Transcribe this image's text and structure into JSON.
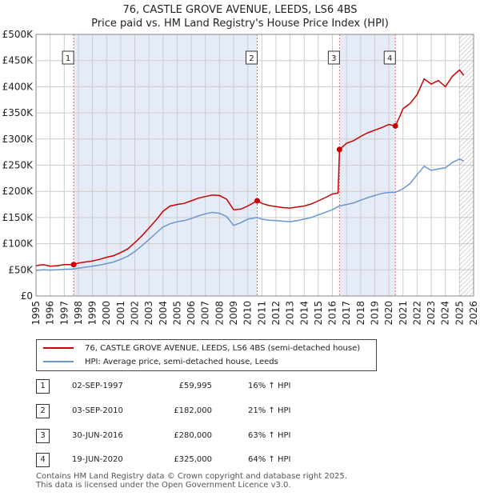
{
  "title_line1": "76, CASTLE GROVE AVENUE, LEEDS, LS6 4BS",
  "title_line2": "Price paid vs. HM Land Registry's House Price Index (HPI)",
  "colors": {
    "property": "#cc0000",
    "hpi": "#6a96d0",
    "shade": "#e6ecf7",
    "dashed": "#e07070"
  },
  "chart_data": {
    "type": "line",
    "xlim": [
      1995,
      2026
    ],
    "ylim": [
      0,
      500000
    ],
    "y_ticks": [
      {
        "v": 0,
        "label": "£0"
      },
      {
        "v": 50000,
        "label": "£50K"
      },
      {
        "v": 100000,
        "label": "£100K"
      },
      {
        "v": 150000,
        "label": "£150K"
      },
      {
        "v": 200000,
        "label": "£200K"
      },
      {
        "v": 250000,
        "label": "£250K"
      },
      {
        "v": 300000,
        "label": "£300K"
      },
      {
        "v": 350000,
        "label": "£350K"
      },
      {
        "v": 400000,
        "label": "£400K"
      },
      {
        "v": 450000,
        "label": "£450K"
      },
      {
        "v": 500000,
        "label": "£500K"
      }
    ],
    "x_ticks": [
      "1995",
      "1996",
      "1997",
      "1998",
      "1999",
      "2000",
      "2001",
      "2002",
      "2003",
      "2004",
      "2005",
      "2006",
      "2007",
      "2008",
      "2009",
      "2010",
      "2011",
      "2012",
      "2013",
      "2014",
      "2015",
      "2016",
      "2017",
      "2018",
      "2019",
      "2020",
      "2021",
      "2022",
      "2023",
      "2024",
      "2025",
      "2026"
    ],
    "shaded_ranges": [
      [
        1997.67,
        2010.67
      ],
      [
        2016.5,
        2020.46
      ]
    ],
    "future_start": 2025.0,
    "series": [
      {
        "name": "76, CASTLE GROVE AVENUE, LEEDS, LS6 4BS (semi-detached house)",
        "points": [
          [
            1995,
            58000
          ],
          [
            1995.5,
            60000
          ],
          [
            1996,
            57000
          ],
          [
            1996.5,
            58000
          ],
          [
            1997,
            60000
          ],
          [
            1997.67,
            59995
          ],
          [
            1998,
            63000
          ],
          [
            1998.5,
            65000
          ],
          [
            1999,
            67000
          ],
          [
            1999.5,
            70000
          ],
          [
            2000,
            74000
          ],
          [
            2000.5,
            77000
          ],
          [
            2001,
            83000
          ],
          [
            2001.5,
            90000
          ],
          [
            2002,
            102000
          ],
          [
            2002.5,
            115000
          ],
          [
            2003,
            130000
          ],
          [
            2003.5,
            145000
          ],
          [
            2004,
            162000
          ],
          [
            2004.5,
            172000
          ],
          [
            2005,
            175000
          ],
          [
            2005.5,
            177000
          ],
          [
            2006,
            182000
          ],
          [
            2006.5,
            187000
          ],
          [
            2007,
            190000
          ],
          [
            2007.5,
            193000
          ],
          [
            2008,
            192000
          ],
          [
            2008.5,
            185000
          ],
          [
            2009,
            165000
          ],
          [
            2009.5,
            166000
          ],
          [
            2010,
            172000
          ],
          [
            2010.67,
            182000
          ],
          [
            2011,
            177000
          ],
          [
            2011.5,
            173000
          ],
          [
            2012,
            171000
          ],
          [
            2012.5,
            169000
          ],
          [
            2013,
            168000
          ],
          [
            2013.5,
            170000
          ],
          [
            2014,
            172000
          ],
          [
            2014.5,
            176000
          ],
          [
            2015,
            182000
          ],
          [
            2015.5,
            188000
          ],
          [
            2016,
            195000
          ],
          [
            2016.4,
            197000
          ],
          [
            2016.5,
            280000
          ],
          [
            2017,
            292000
          ],
          [
            2017.5,
            297000
          ],
          [
            2018,
            305000
          ],
          [
            2018.5,
            312000
          ],
          [
            2019,
            317000
          ],
          [
            2019.5,
            322000
          ],
          [
            2020,
            328000
          ],
          [
            2020.46,
            325000
          ],
          [
            2020.8,
            345000
          ],
          [
            2021,
            358000
          ],
          [
            2021.5,
            368000
          ],
          [
            2022,
            385000
          ],
          [
            2022.5,
            415000
          ],
          [
            2023,
            405000
          ],
          [
            2023.5,
            412000
          ],
          [
            2024,
            400000
          ],
          [
            2024.5,
            420000
          ],
          [
            2025,
            432000
          ],
          [
            2025.3,
            422000
          ]
        ]
      },
      {
        "name": "HPI: Average price, semi-detached house, Leeds",
        "points": [
          [
            1995,
            49000
          ],
          [
            1995.5,
            50000
          ],
          [
            1996,
            49500
          ],
          [
            1996.5,
            50000
          ],
          [
            1997,
            51000
          ],
          [
            1997.67,
            51500
          ],
          [
            1998,
            53000
          ],
          [
            1998.5,
            55000
          ],
          [
            1999,
            57000
          ],
          [
            1999.5,
            59000
          ],
          [
            2000,
            62000
          ],
          [
            2000.5,
            65000
          ],
          [
            2001,
            70000
          ],
          [
            2001.5,
            76000
          ],
          [
            2002,
            85000
          ],
          [
            2002.5,
            96000
          ],
          [
            2003,
            108000
          ],
          [
            2003.5,
            120000
          ],
          [
            2004,
            132000
          ],
          [
            2004.5,
            138000
          ],
          [
            2005,
            142000
          ],
          [
            2005.5,
            144000
          ],
          [
            2006,
            148000
          ],
          [
            2006.5,
            153000
          ],
          [
            2007,
            157000
          ],
          [
            2007.5,
            160000
          ],
          [
            2008,
            158000
          ],
          [
            2008.5,
            152000
          ],
          [
            2009,
            135000
          ],
          [
            2009.5,
            140000
          ],
          [
            2010,
            147000
          ],
          [
            2010.67,
            150000
          ],
          [
            2011,
            147000
          ],
          [
            2011.5,
            145000
          ],
          [
            2012,
            144000
          ],
          [
            2012.5,
            143000
          ],
          [
            2013,
            142000
          ],
          [
            2013.5,
            144000
          ],
          [
            2014,
            147000
          ],
          [
            2014.5,
            150000
          ],
          [
            2015,
            155000
          ],
          [
            2015.5,
            160000
          ],
          [
            2016,
            165000
          ],
          [
            2016.5,
            172000
          ],
          [
            2017,
            175000
          ],
          [
            2017.5,
            178000
          ],
          [
            2018,
            183000
          ],
          [
            2018.5,
            188000
          ],
          [
            2019,
            192000
          ],
          [
            2019.5,
            196000
          ],
          [
            2020,
            198000
          ],
          [
            2020.46,
            198000
          ],
          [
            2021,
            205000
          ],
          [
            2021.5,
            215000
          ],
          [
            2022,
            232000
          ],
          [
            2022.5,
            248000
          ],
          [
            2023,
            240000
          ],
          [
            2023.5,
            243000
          ],
          [
            2024,
            245000
          ],
          [
            2024.5,
            255000
          ],
          [
            2025,
            262000
          ],
          [
            2025.3,
            258000
          ]
        ]
      }
    ],
    "sales": [
      {
        "label": "1",
        "x": 1997.67,
        "price": 59995
      },
      {
        "label": "2",
        "x": 2010.67,
        "price": 182000
      },
      {
        "label": "3",
        "x": 2016.5,
        "price": 280000
      },
      {
        "label": "4",
        "x": 2020.46,
        "price": 325000
      }
    ]
  },
  "legend": {
    "property": "76, CASTLE GROVE AVENUE, LEEDS, LS6 4BS (semi-detached house)",
    "hpi": "HPI: Average price, semi-detached house, Leeds"
  },
  "table": [
    {
      "num": "1",
      "date": "02-SEP-1997",
      "price": "£59,995",
      "hpi": "16% ↑ HPI"
    },
    {
      "num": "2",
      "date": "03-SEP-2010",
      "price": "£182,000",
      "hpi": "21% ↑ HPI"
    },
    {
      "num": "3",
      "date": "30-JUN-2016",
      "price": "£280,000",
      "hpi": "63% ↑ HPI"
    },
    {
      "num": "4",
      "date": "19-JUN-2020",
      "price": "£325,000",
      "hpi": "64% ↑ HPI"
    }
  ],
  "footer_line1": "Contains HM Land Registry data © Crown copyright and database right 2025.",
  "footer_line2": "This data is licensed under the Open Government Licence v3.0."
}
